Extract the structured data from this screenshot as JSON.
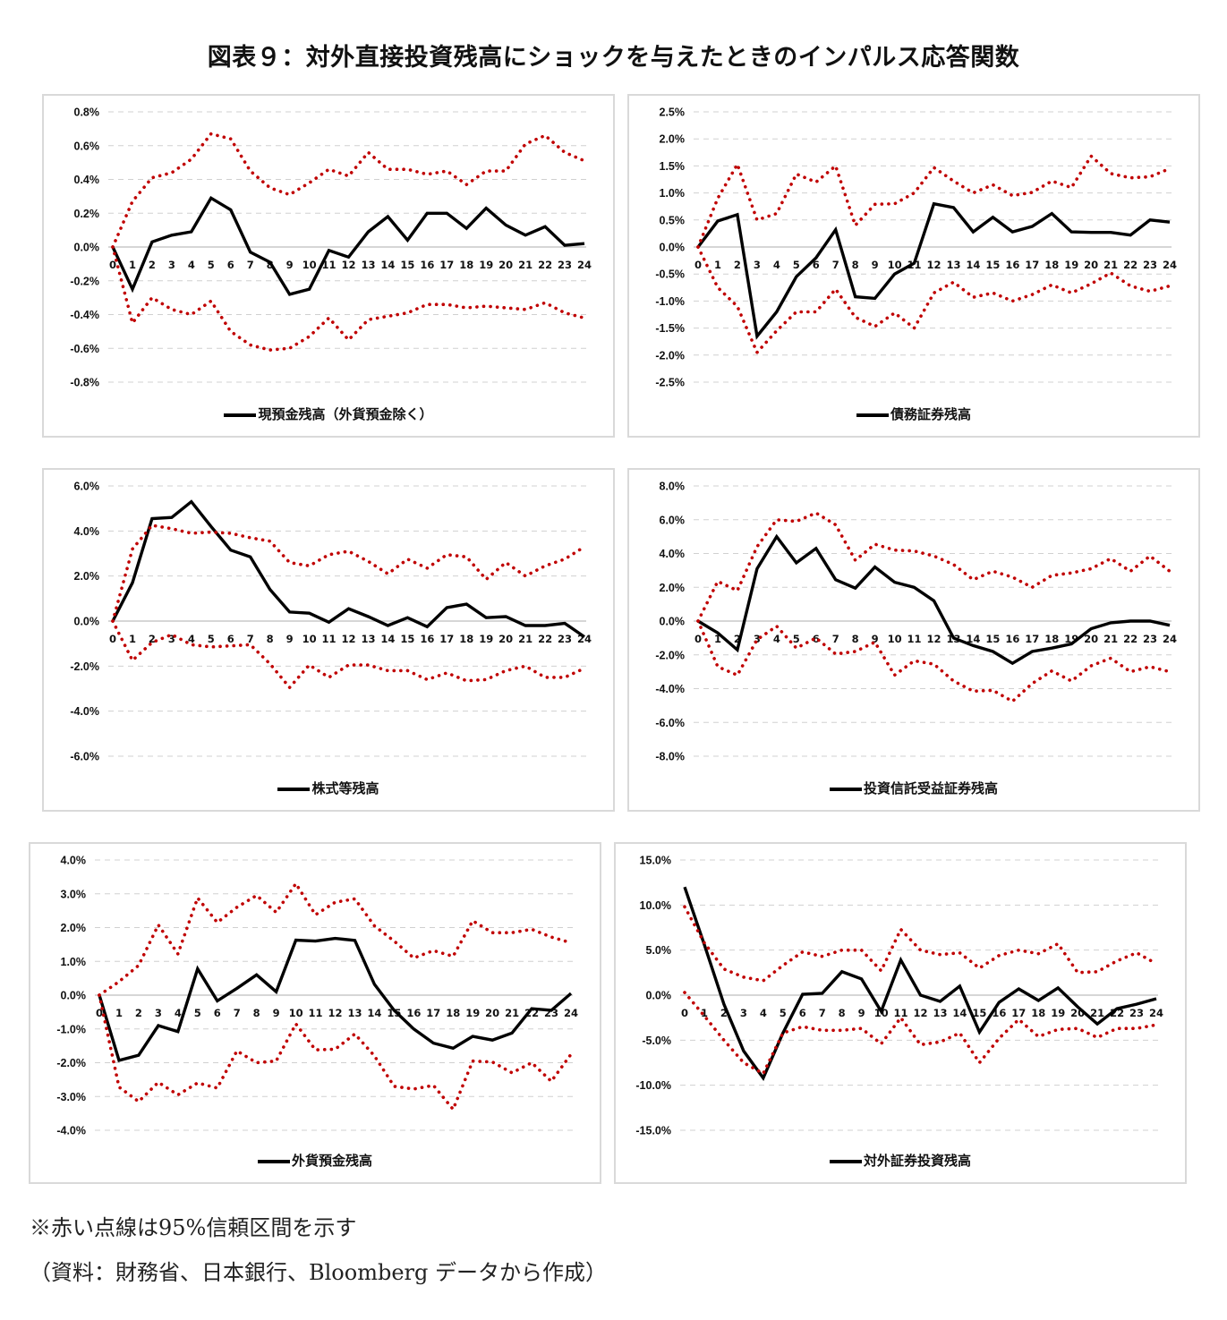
{
  "title": "図表９：対外直接投資残高にショックを与えたときのインパルス応答関数",
  "note": "※赤い点線は95%信頼区間を示す",
  "source": "（資料：財務省、日本銀行、Bloomberg データから作成）",
  "colors": {
    "response": "#000000",
    "band": "#c00000",
    "grid": "#d0d0d0",
    "zero": "#c8c8c8"
  },
  "chart_data": [
    {
      "type": "line",
      "title": "",
      "legend": "現預金残高（外貨預金除く）",
      "legend_position": "bottom",
      "x": [
        0,
        1,
        2,
        3,
        4,
        5,
        6,
        7,
        8,
        9,
        10,
        11,
        12,
        13,
        14,
        15,
        16,
        17,
        18,
        19,
        20,
        21,
        22,
        23,
        24
      ],
      "ylim": [
        -0.8,
        0.8
      ],
      "yticks": [
        0.8,
        0.6,
        0.4,
        0.2,
        0.0,
        -0.2,
        -0.4,
        -0.6,
        -0.8
      ],
      "ytick_labels": [
        "0.8%",
        "0.6%",
        "0.4%",
        "0.2%",
        "0.0%",
        "-0.2%",
        "-0.4%",
        "-0.6%",
        "-0.8%"
      ],
      "grid": true,
      "series": [
        {
          "name": "response",
          "style": "solid",
          "values": [
            0.0,
            -0.25,
            0.03,
            0.07,
            0.09,
            0.29,
            0.22,
            -0.03,
            -0.09,
            -0.28,
            -0.25,
            -0.02,
            -0.06,
            0.09,
            0.18,
            0.04,
            0.2,
            0.2,
            0.11,
            0.23,
            0.13,
            0.07,
            0.12,
            0.01,
            0.02
          ]
        },
        {
          "name": "upper95",
          "style": "dotted",
          "values": [
            0.0,
            0.27,
            0.41,
            0.44,
            0.52,
            0.67,
            0.64,
            0.45,
            0.35,
            0.31,
            0.38,
            0.46,
            0.42,
            0.56,
            0.46,
            0.46,
            0.43,
            0.45,
            0.37,
            0.45,
            0.45,
            0.61,
            0.66,
            0.56,
            0.51
          ]
        },
        {
          "name": "lower95",
          "style": "dotted",
          "values": [
            0.0,
            -0.45,
            -0.3,
            -0.37,
            -0.4,
            -0.32,
            -0.5,
            -0.58,
            -0.61,
            -0.6,
            -0.53,
            -0.42,
            -0.55,
            -0.43,
            -0.41,
            -0.39,
            -0.34,
            -0.34,
            -0.36,
            -0.35,
            -0.36,
            -0.37,
            -0.33,
            -0.39,
            -0.42
          ]
        }
      ]
    },
    {
      "type": "line",
      "title": "",
      "legend": "債務証券残高",
      "legend_position": "bottom",
      "x": [
        0,
        1,
        2,
        3,
        4,
        5,
        6,
        7,
        8,
        9,
        10,
        11,
        12,
        13,
        14,
        15,
        16,
        17,
        18,
        19,
        20,
        21,
        22,
        23,
        24
      ],
      "ylim": [
        -2.5,
        2.5
      ],
      "yticks": [
        2.5,
        2.0,
        1.5,
        1.0,
        0.5,
        0.0,
        -0.5,
        -1.0,
        -1.5,
        -2.0,
        -2.5
      ],
      "ytick_labels": [
        "2.5%",
        "2.0%",
        "1.5%",
        "1.0%",
        "0.5%",
        "0.0%",
        "-0.5%",
        "-1.0%",
        "-1.5%",
        "-2.0%",
        "-2.5%"
      ],
      "grid": true,
      "series": [
        {
          "name": "response",
          "style": "solid",
          "values": [
            0.0,
            0.48,
            0.6,
            -1.65,
            -1.2,
            -0.55,
            -0.2,
            0.32,
            -0.92,
            -0.95,
            -0.5,
            -0.3,
            0.8,
            0.73,
            0.28,
            0.55,
            0.28,
            0.38,
            0.62,
            0.28,
            0.27,
            0.27,
            0.22,
            0.5,
            0.46
          ]
        },
        {
          "name": "upper95",
          "style": "dotted",
          "values": [
            0.0,
            0.9,
            1.53,
            0.5,
            0.62,
            1.35,
            1.2,
            1.5,
            0.4,
            0.79,
            0.8,
            1.0,
            1.47,
            1.22,
            1.0,
            1.15,
            0.95,
            1.01,
            1.22,
            1.1,
            1.68,
            1.36,
            1.28,
            1.3,
            1.45
          ]
        },
        {
          "name": "lower95",
          "style": "dotted",
          "values": [
            0.0,
            -0.75,
            -1.1,
            -1.95,
            -1.55,
            -1.2,
            -1.2,
            -0.78,
            -1.3,
            -1.47,
            -1.22,
            -1.5,
            -0.85,
            -0.65,
            -0.93,
            -0.85,
            -1.0,
            -0.88,
            -0.7,
            -0.85,
            -0.68,
            -0.48,
            -0.72,
            -0.82,
            -0.72
          ]
        }
      ]
    },
    {
      "type": "line",
      "title": "",
      "legend": "株式等残高",
      "legend_position": "bottom",
      "x": [
        0,
        1,
        2,
        3,
        4,
        5,
        6,
        7,
        8,
        9,
        10,
        11,
        12,
        13,
        14,
        15,
        16,
        17,
        18,
        19,
        20,
        21,
        22,
        23,
        24
      ],
      "ylim": [
        -6.0,
        6.0
      ],
      "yticks": [
        6.0,
        4.0,
        2.0,
        0.0,
        -2.0,
        -4.0,
        -6.0
      ],
      "ytick_labels": [
        "6.0%",
        "4.0%",
        "2.0%",
        "0.0%",
        "-2.0%",
        "-4.0%",
        "-6.0%"
      ],
      "grid": true,
      "series": [
        {
          "name": "response",
          "style": "solid",
          "values": [
            0.0,
            1.7,
            4.55,
            4.6,
            5.3,
            4.2,
            3.15,
            2.85,
            1.4,
            0.4,
            0.35,
            -0.05,
            0.55,
            0.2,
            -0.2,
            0.15,
            -0.25,
            0.6,
            0.75,
            0.15,
            0.2,
            -0.2,
            -0.2,
            -0.1,
            -0.7
          ]
        },
        {
          "name": "upper95",
          "style": "dotted",
          "values": [
            0.0,
            3.2,
            4.25,
            4.1,
            3.9,
            3.95,
            3.9,
            3.7,
            3.55,
            2.6,
            2.45,
            2.95,
            3.1,
            2.65,
            2.1,
            2.75,
            2.35,
            2.95,
            2.85,
            1.85,
            2.6,
            2.0,
            2.45,
            2.75,
            3.3
          ]
        },
        {
          "name": "lower95",
          "style": "dotted",
          "values": [
            0.0,
            -1.75,
            -0.95,
            -0.6,
            -1.05,
            -1.15,
            -1.1,
            -1.05,
            -1.9,
            -2.95,
            -1.95,
            -2.5,
            -1.95,
            -1.95,
            -2.2,
            -2.2,
            -2.6,
            -2.3,
            -2.65,
            -2.6,
            -2.2,
            -2.0,
            -2.5,
            -2.5,
            -2.1
          ]
        }
      ]
    },
    {
      "type": "line",
      "title": "",
      "legend": "投資信託受益証券残高",
      "legend_position": "bottom",
      "x": [
        0,
        1,
        2,
        3,
        4,
        5,
        6,
        7,
        8,
        9,
        10,
        11,
        12,
        13,
        14,
        15,
        16,
        17,
        18,
        19,
        20,
        21,
        22,
        23,
        24
      ],
      "ylim": [
        -8.0,
        8.0
      ],
      "yticks": [
        8.0,
        6.0,
        4.0,
        2.0,
        0.0,
        -2.0,
        -4.0,
        -6.0,
        -8.0
      ],
      "ytick_labels": [
        "8.0%",
        "6.0%",
        "4.0%",
        "2.0%",
        "0.0%",
        "-2.0%",
        "-4.0%",
        "-6.0%",
        "-8.0%"
      ],
      "grid": true,
      "series": [
        {
          "name": "response",
          "style": "solid",
          "values": [
            0.0,
            -0.7,
            -1.7,
            3.1,
            5.0,
            3.45,
            4.3,
            2.45,
            1.95,
            3.2,
            2.3,
            2.0,
            1.2,
            -1.0,
            -1.45,
            -1.8,
            -2.5,
            -1.8,
            -1.6,
            -1.35,
            -0.45,
            -0.1,
            0.0,
            0.0,
            -0.25
          ]
        },
        {
          "name": "upper95",
          "style": "dotted",
          "values": [
            0.0,
            2.35,
            1.8,
            4.4,
            6.0,
            5.9,
            6.4,
            5.7,
            3.6,
            4.55,
            4.2,
            4.15,
            3.85,
            3.35,
            2.45,
            2.95,
            2.6,
            2.0,
            2.7,
            2.85,
            3.1,
            3.7,
            2.95,
            3.85,
            2.95
          ]
        },
        {
          "name": "lower95",
          "style": "dotted",
          "values": [
            0.0,
            -2.7,
            -3.2,
            -1.1,
            -0.3,
            -1.6,
            -1.0,
            -1.95,
            -1.8,
            -1.25,
            -3.2,
            -2.35,
            -2.55,
            -3.55,
            -4.15,
            -4.1,
            -4.75,
            -3.7,
            -2.95,
            -3.55,
            -2.65,
            -2.2,
            -3.0,
            -2.7,
            -3.0
          ]
        }
      ]
    },
    {
      "type": "line",
      "title": "",
      "legend": "外貨預金残高",
      "legend_position": "bottom",
      "x": [
        0,
        1,
        2,
        3,
        4,
        5,
        6,
        7,
        8,
        9,
        10,
        11,
        12,
        13,
        14,
        15,
        16,
        17,
        18,
        19,
        20,
        21,
        22,
        23,
        24
      ],
      "ylim": [
        -4.0,
        4.0
      ],
      "yticks": [
        4.0,
        3.0,
        2.0,
        1.0,
        0.0,
        -1.0,
        -2.0,
        -3.0,
        -4.0
      ],
      "ytick_labels": [
        "4.0%",
        "3.0%",
        "2.0%",
        "1.0%",
        "0.0%",
        "-1.0%",
        "-2.0%",
        "-3.0%",
        "-4.0%"
      ],
      "grid": true,
      "series": [
        {
          "name": "response",
          "style": "solid",
          "values": [
            0.0,
            -1.93,
            -1.78,
            -0.9,
            -1.08,
            0.78,
            -0.17,
            0.2,
            0.6,
            0.1,
            1.63,
            1.6,
            1.68,
            1.62,
            0.32,
            -0.45,
            -1.0,
            -1.42,
            -1.57,
            -1.22,
            -1.33,
            -1.12,
            -0.4,
            -0.45,
            0.05
          ]
        },
        {
          "name": "upper95",
          "style": "dotted",
          "values": [
            0.0,
            0.4,
            0.88,
            2.08,
            1.22,
            2.88,
            2.15,
            2.6,
            2.95,
            2.45,
            3.3,
            2.38,
            2.75,
            2.85,
            2.05,
            1.6,
            1.1,
            1.32,
            1.15,
            2.2,
            1.85,
            1.85,
            1.95,
            1.72,
            1.55
          ]
        },
        {
          "name": "lower95",
          "style": "dotted",
          "values": [
            0.0,
            -2.72,
            -3.15,
            -2.58,
            -2.95,
            -2.6,
            -2.75,
            -1.65,
            -2.0,
            -1.95,
            -0.85,
            -1.62,
            -1.6,
            -1.15,
            -1.8,
            -2.7,
            -2.78,
            -2.67,
            -3.38,
            -1.95,
            -1.98,
            -2.3,
            -2.0,
            -2.55,
            -1.75
          ]
        }
      ]
    },
    {
      "type": "line",
      "title": "",
      "legend": "対外証券投資残高",
      "legend_position": "bottom",
      "x": [
        0,
        1,
        2,
        3,
        4,
        5,
        6,
        7,
        8,
        9,
        10,
        11,
        12,
        13,
        14,
        15,
        16,
        17,
        18,
        19,
        20,
        21,
        22,
        23,
        24
      ],
      "ylim": [
        -15.0,
        15.0
      ],
      "yticks": [
        15.0,
        10.0,
        5.0,
        0.0,
        -5.0,
        -10.0,
        -15.0
      ],
      "ytick_labels": [
        "15.0%",
        "10.0%",
        "5.0%",
        "0.0%",
        "-5.0%",
        "-10.0%",
        "-15.0%"
      ],
      "grid": true,
      "series": [
        {
          "name": "response",
          "style": "solid",
          "values": [
            12.0,
            5.6,
            -1.0,
            -6.2,
            -9.2,
            -4.2,
            0.1,
            0.2,
            2.6,
            1.8,
            -1.8,
            3.9,
            0.0,
            -0.7,
            1.0,
            -4.1,
            -0.8,
            0.7,
            -0.6,
            0.8,
            -1.3,
            -3.2,
            -1.5,
            -1.0,
            -0.4
          ]
        },
        {
          "name": "upper95",
          "style": "dotted",
          "values": [
            9.8,
            5.8,
            2.9,
            2.0,
            1.6,
            3.3,
            4.8,
            4.3,
            5.0,
            5.0,
            2.7,
            7.3,
            5.0,
            4.5,
            4.7,
            3.0,
            4.4,
            5.0,
            4.6,
            5.7,
            2.5,
            2.6,
            3.8,
            4.7,
            3.5
          ]
        },
        {
          "name": "lower95",
          "style": "dotted",
          "values": [
            0.3,
            -2.3,
            -5.0,
            -7.5,
            -8.7,
            -4.2,
            -3.5,
            -3.9,
            -3.9,
            -3.7,
            -5.4,
            -2.5,
            -5.5,
            -5.2,
            -4.2,
            -7.5,
            -4.8,
            -2.7,
            -4.6,
            -3.8,
            -3.7,
            -4.7,
            -3.7,
            -3.7,
            -3.3
          ]
        }
      ]
    }
  ]
}
